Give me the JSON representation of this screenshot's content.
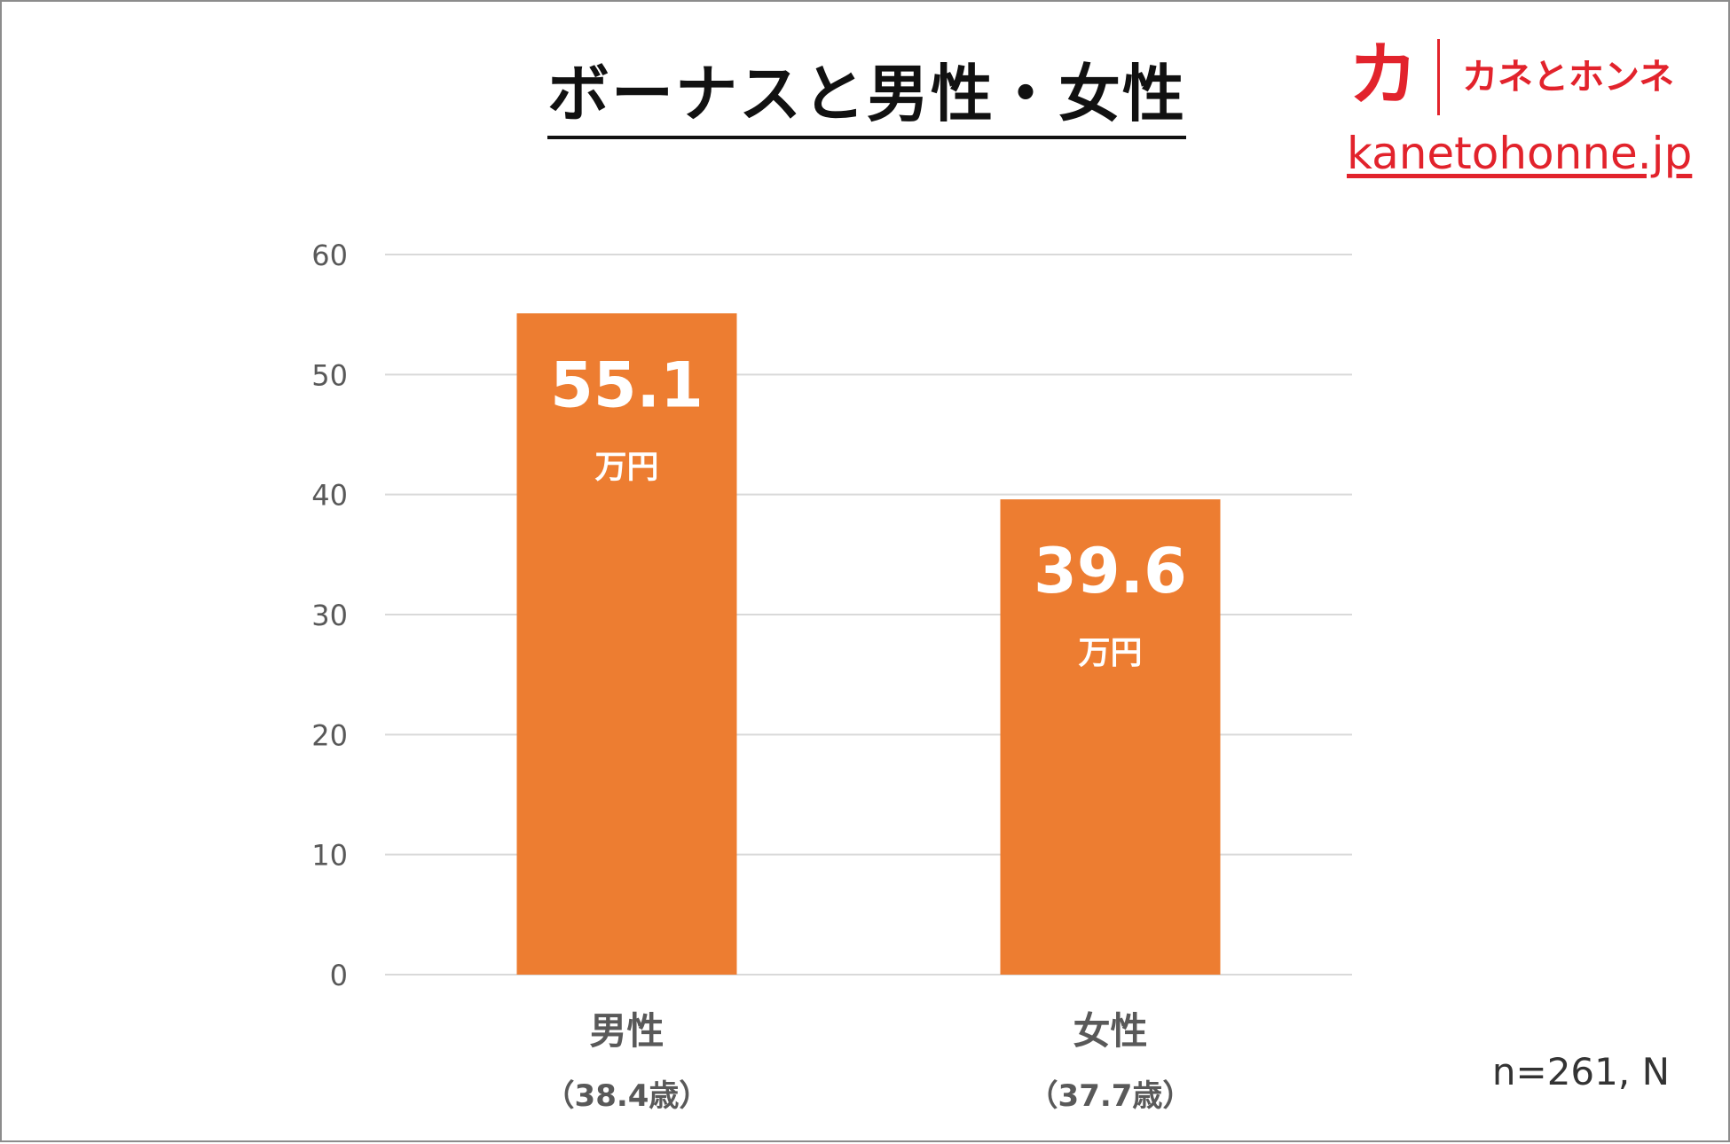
{
  "header": {
    "title": "ボーナスと男性・女性",
    "brand_mark": "カ",
    "brand_name": "カネとホンネ",
    "site_url": "kanetohonne.jp"
  },
  "footer": {
    "sample_note": "n=261, N"
  },
  "colors": {
    "bar": "#ed7d31",
    "brand": "#e2232c",
    "grid": "#d9d9d9",
    "axis_text": "#595959"
  },
  "chart_data": {
    "type": "bar",
    "categories": [
      "男性",
      "女性"
    ],
    "category_sublabels": [
      "（38.4歳）",
      "（37.7歳）"
    ],
    "values": [
      55.1,
      39.6
    ],
    "data_labels": [
      "55.1",
      "39.6"
    ],
    "value_unit": "万円",
    "ylim": [
      0,
      60
    ],
    "yticks": [
      0,
      10,
      20,
      30,
      40,
      50,
      60
    ],
    "grid": true,
    "title": "ボーナスと男性・女性",
    "xlabel": "",
    "ylabel": ""
  }
}
